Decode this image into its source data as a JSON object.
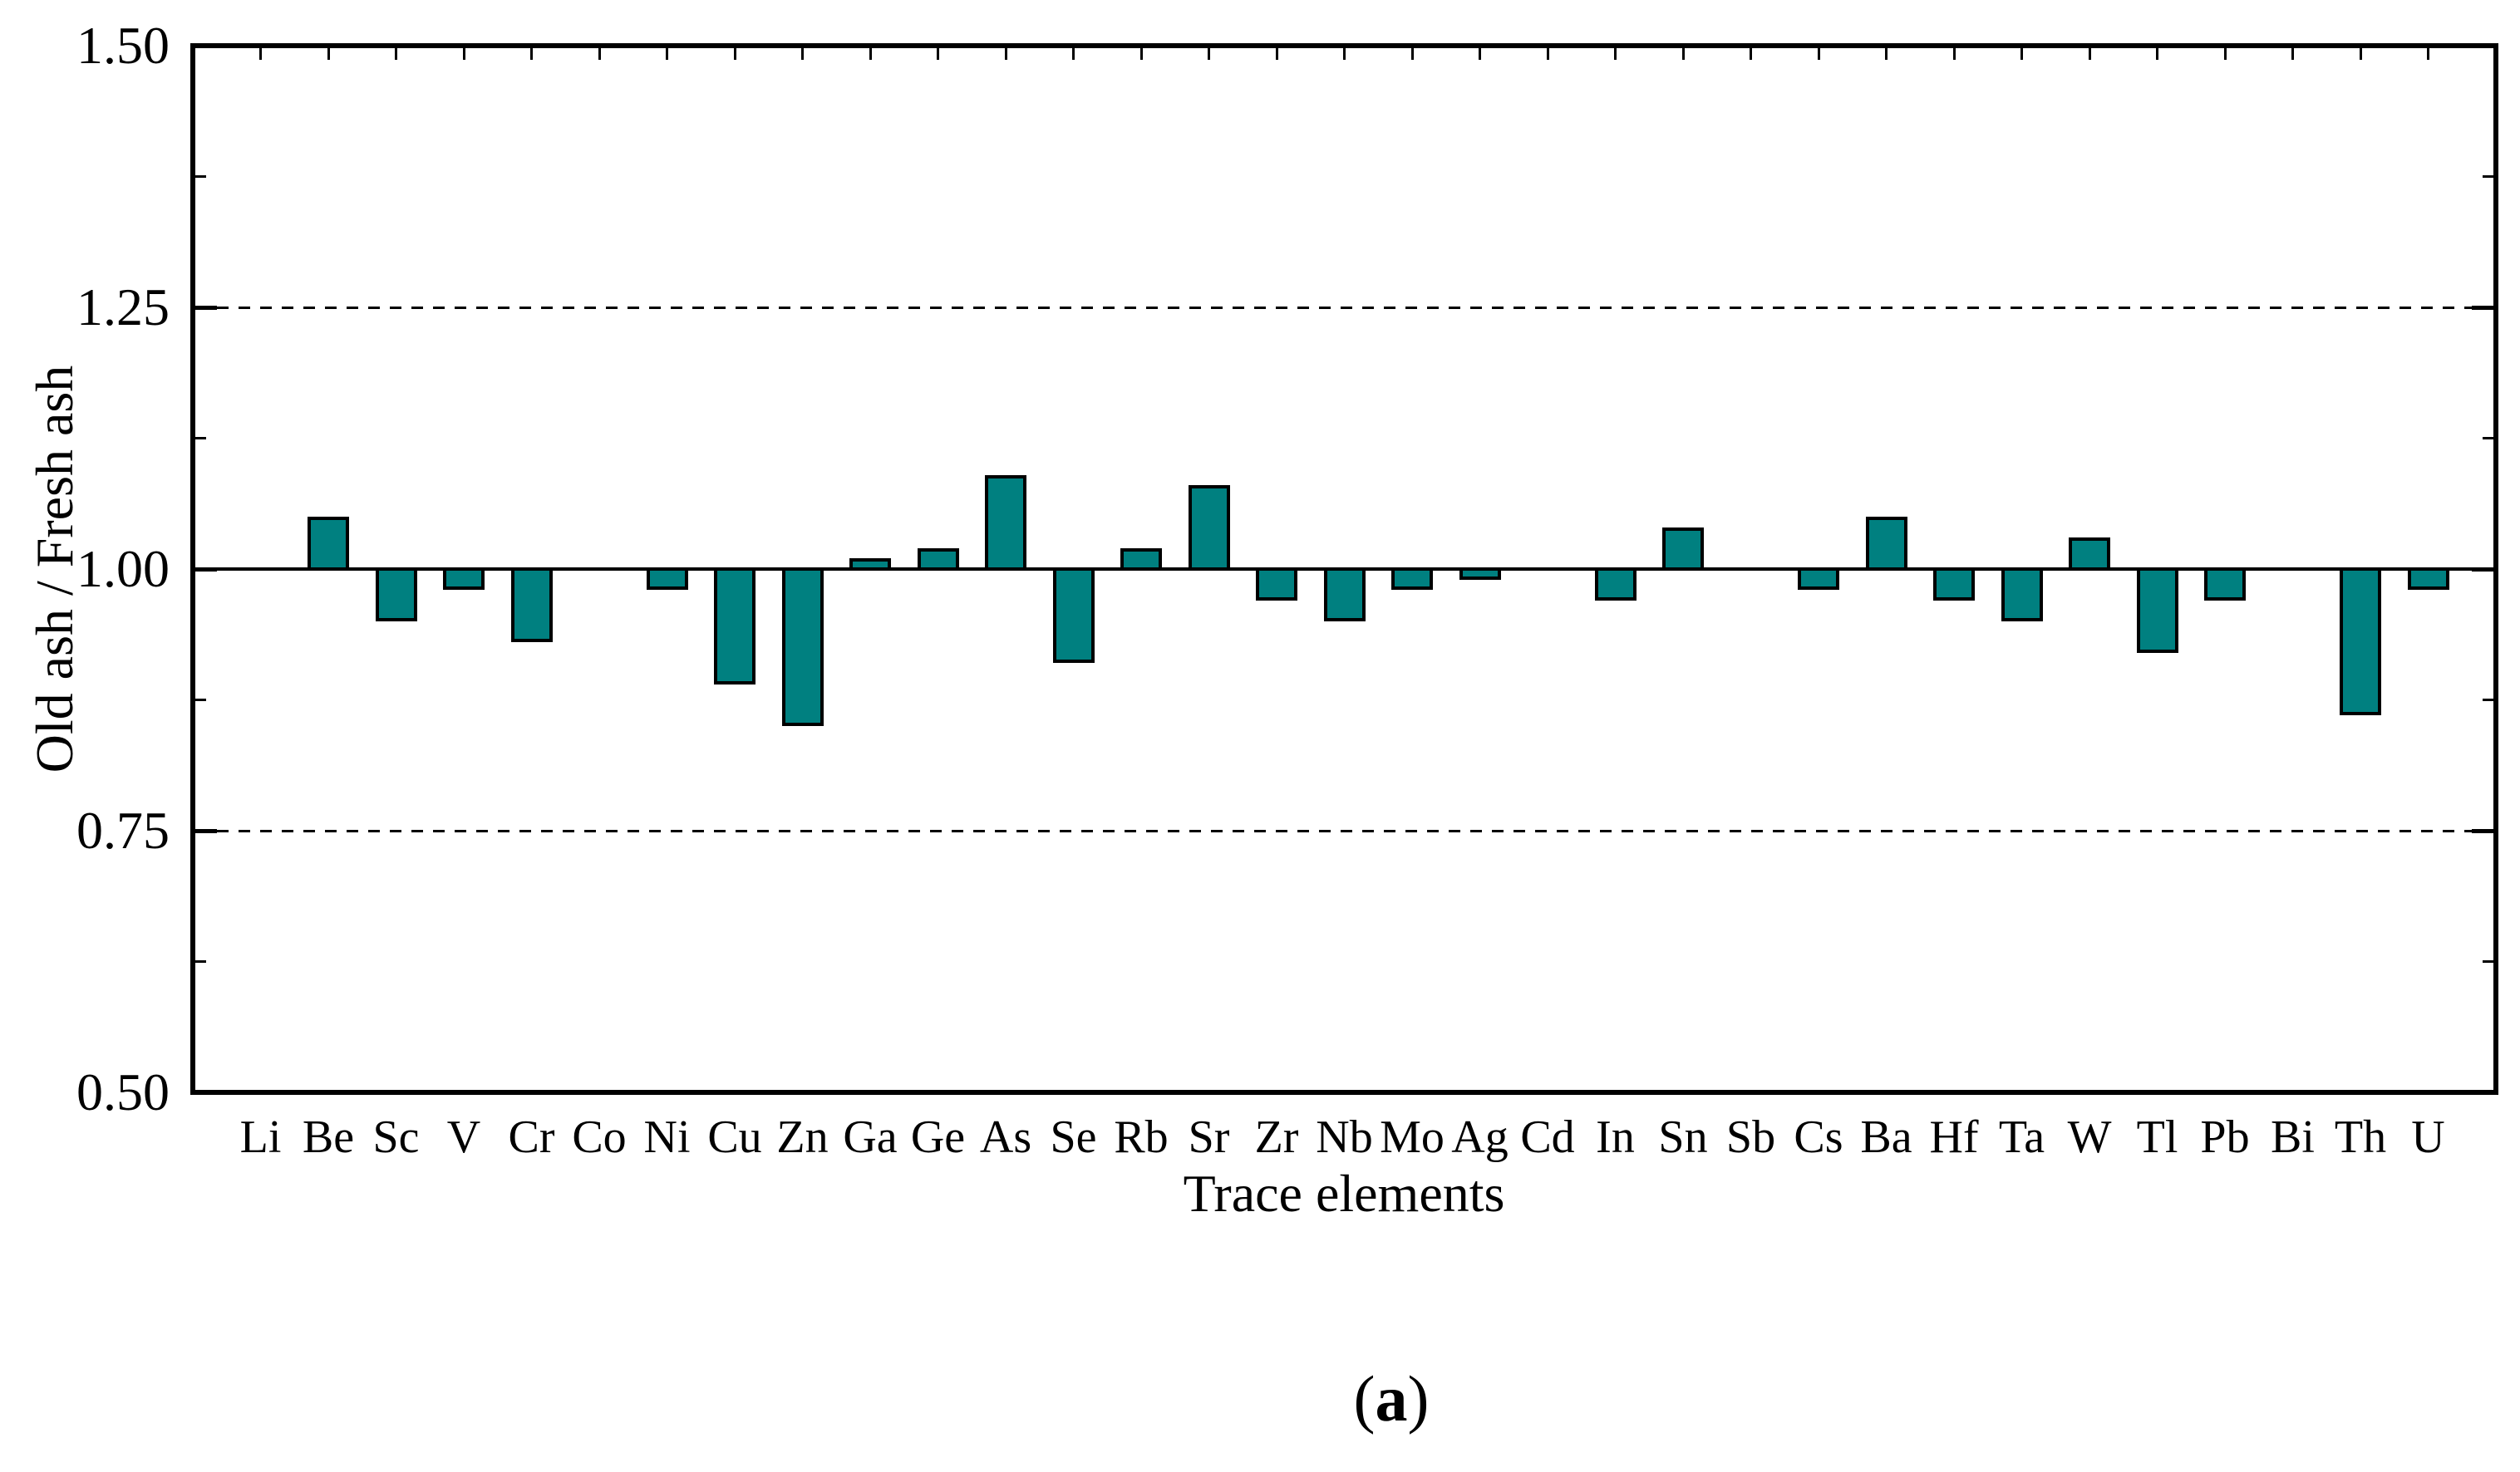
{
  "figure": {
    "caption": {
      "open": "(",
      "label": "a",
      "close": ")"
    }
  },
  "chart_data": {
    "type": "bar",
    "title": "",
    "xlabel": "Trace elements",
    "ylabel": "Old ash / Fresh ash",
    "categories": [
      "Li",
      "Be",
      "Sc",
      "V",
      "Cr",
      "Co",
      "Ni",
      "Cu",
      "Zn",
      "Ga",
      "Ge",
      "As",
      "Se",
      "Rb",
      "Sr",
      "Zr",
      "Nb",
      "Mo",
      "Ag",
      "Cd",
      "In",
      "Sn",
      "Sb",
      "Cs",
      "Ba",
      "Hf",
      "Ta",
      "W",
      "Tl",
      "Pb",
      "Bi",
      "Th",
      "U"
    ],
    "values": [
      1.0,
      1.05,
      0.95,
      0.98,
      0.93,
      1.0,
      0.98,
      0.89,
      0.85,
      1.01,
      1.02,
      1.09,
      0.91,
      1.02,
      1.08,
      0.97,
      0.95,
      0.98,
      0.99,
      1.0,
      0.97,
      1.04,
      1.0,
      0.98,
      1.05,
      0.97,
      0.95,
      1.03,
      0.92,
      0.97,
      1.0,
      0.86,
      0.98
    ],
    "baseline": 1.0,
    "ylim": [
      0.5,
      1.5
    ],
    "yticks": [
      0.5,
      0.75,
      1.0,
      1.25,
      1.5
    ],
    "ytick_labels": [
      "0.50",
      "0.75",
      "1.00",
      "1.25",
      "1.50"
    ],
    "minor_yticks": [
      0.625,
      0.875,
      1.125,
      1.375
    ],
    "dashed_gridlines": [
      0.75,
      1.25
    ],
    "grid": "horizontal dashed at 0.75 and 1.25, solid reference line at 1.00",
    "legend": "none",
    "bar_color": "#008080",
    "bar_border_color": "#000000",
    "axis_color": "#000000",
    "background_color": "#ffffff"
  }
}
